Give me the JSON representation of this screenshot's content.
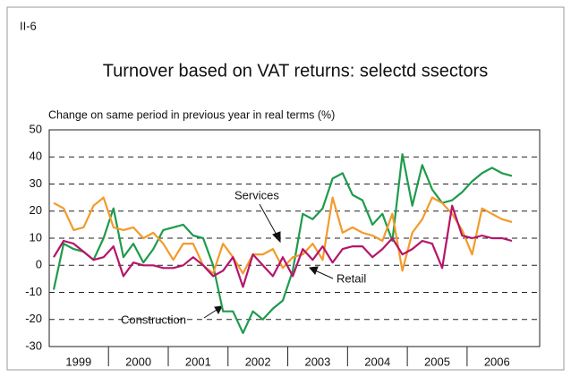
{
  "chart_data": {
    "type": "line",
    "label": "II-6",
    "title": "Turnover based on VAT returns: selectd ssectors",
    "y_label": "Change on same period in previous year in real terms (%)",
    "categories": [
      "1999",
      null,
      null,
      null,
      null,
      null,
      "2000",
      null,
      null,
      null,
      null,
      null,
      "2001",
      null,
      null,
      null,
      null,
      null,
      "2002",
      null,
      null,
      null,
      null,
      null,
      "2003",
      null,
      null,
      null,
      null,
      null,
      "2004",
      null,
      null,
      null,
      null,
      null,
      "2005",
      null,
      null,
      null,
      null,
      null,
      "2006",
      null,
      null,
      null,
      null
    ],
    "series": [
      {
        "name": "Construction",
        "color": "#1e9b4c",
        "values": [
          -9,
          8,
          6,
          5,
          2,
          10,
          21,
          3,
          8,
          1,
          6,
          13,
          14,
          15,
          11,
          10,
          0,
          -17,
          -17,
          -25,
          -17,
          -20,
          -16,
          -13,
          -2,
          19,
          17,
          21,
          32,
          34,
          26,
          24,
          15,
          19,
          9,
          41,
          22,
          37,
          28,
          23,
          24,
          27,
          31,
          34,
          36,
          34,
          33
        ]
      },
      {
        "name": "Services",
        "color": "#f39a2b",
        "values": [
          23,
          21,
          13,
          14,
          22,
          25,
          14,
          13,
          14,
          10,
          12,
          8,
          2,
          8,
          8,
          0,
          -3,
          8,
          3,
          -3,
          4,
          4,
          6,
          -1,
          3,
          4,
          8,
          2,
          25,
          12,
          14,
          12,
          11,
          9,
          19,
          -2,
          12,
          17,
          25,
          23,
          19,
          13,
          4,
          21,
          19,
          17,
          16
        ]
      },
      {
        "name": "Retail",
        "color": "#b5156b",
        "values": [
          3,
          9,
          8,
          5,
          2,
          3,
          7,
          -4,
          1,
          0,
          0,
          -1,
          -1,
          0,
          3,
          0,
          -4,
          -2,
          3,
          -8,
          4,
          0,
          -4,
          3,
          -4,
          6,
          2,
          7,
          1,
          6,
          7,
          7,
          3,
          6,
          10,
          4,
          6,
          9,
          8,
          -1,
          22,
          11,
          10,
          11,
          10,
          10,
          9
        ]
      }
    ],
    "ylim": [
      -30,
      50
    ],
    "yticks": [
      -30,
      -20,
      -10,
      0,
      10,
      20,
      30,
      40,
      50
    ],
    "grid": true
  }
}
